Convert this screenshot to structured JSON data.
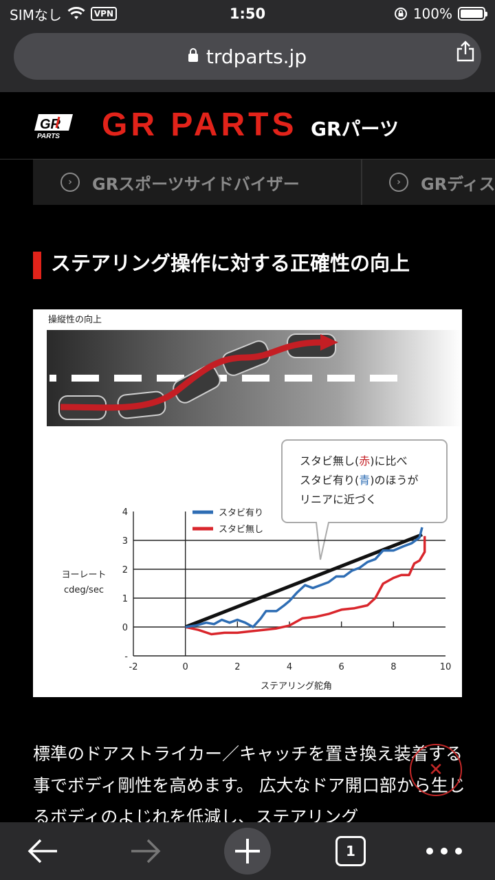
{
  "status": {
    "carrier": "SIMなし",
    "vpn": "VPN",
    "time": "1:50",
    "battery": "100%"
  },
  "browser": {
    "url": "trdparts.jp",
    "tab_count": "1"
  },
  "site": {
    "logo_text": "GR",
    "logo_sub": "PARTS",
    "title": "GR PARTS",
    "subtitle": "GRパーツ"
  },
  "tabs": [
    {
      "label": "GRスポーツサイドバイザー"
    },
    {
      "label": "GRディス"
    }
  ],
  "section": {
    "title": "ステアリング操作に対する正確性の向上"
  },
  "figure": {
    "top_caption": "操縦性の向上",
    "callout": [
      "スタビ無し(",
      "赤",
      ")に比べ",
      "スタビ有り(",
      "青",
      ")のほうが",
      "リニアに近づく"
    ],
    "colors": {
      "with": "#2e6db4",
      "without": "#d9262c",
      "reference": "#111111"
    }
  },
  "chart_data": {
    "type": "line",
    "xlabel": "ステアリング舵角",
    "ylabel": "ヨーレート",
    "ylabel_unit": "cdeg/sec",
    "xlim": [
      -2,
      10
    ],
    "ylim": [
      -1,
      4
    ],
    "x_ticks": [
      "-2",
      "0",
      "2",
      "4",
      "6",
      "8",
      "10"
    ],
    "y_ticks": [
      "-",
      "0",
      "1",
      "2",
      "3",
      "4"
    ],
    "legend": "top-left",
    "series": [
      {
        "name": "スタビ有り",
        "color": "#2e6db4",
        "x": [
          0,
          0.4,
          0.8,
          1.1,
          1.4,
          1.7,
          2.0,
          2.3,
          2.6,
          2.9,
          3.1,
          3.5,
          3.8,
          4.0,
          4.3,
          4.6,
          4.9,
          5.2,
          5.5,
          5.8,
          6.1,
          6.4,
          6.7,
          7.0,
          7.3,
          7.6,
          8.0,
          8.4,
          8.7,
          9.0,
          9.1
        ],
        "y": [
          0,
          0.05,
          0.15,
          0.1,
          0.25,
          0.15,
          0.25,
          0.15,
          0.0,
          0.3,
          0.55,
          0.55,
          0.75,
          0.9,
          1.2,
          1.45,
          1.35,
          1.45,
          1.55,
          1.75,
          1.75,
          1.95,
          2.05,
          2.25,
          2.35,
          2.65,
          2.65,
          2.8,
          2.9,
          3.1,
          3.45
        ]
      },
      {
        "name": "スタビ無し",
        "color": "#d9262c",
        "x": [
          0,
          0.5,
          1.0,
          1.5,
          2.0,
          2.5,
          3.0,
          3.5,
          4.0,
          4.5,
          5.0,
          5.5,
          6.0,
          6.5,
          7.0,
          7.3,
          7.6,
          8.0,
          8.3,
          8.6,
          8.8,
          9.0,
          9.2,
          9.2
        ],
        "y": [
          0,
          -0.1,
          -0.25,
          -0.2,
          -0.2,
          -0.15,
          -0.1,
          -0.05,
          0.05,
          0.3,
          0.35,
          0.45,
          0.6,
          0.65,
          0.75,
          1.0,
          1.5,
          1.7,
          1.8,
          1.8,
          2.2,
          2.3,
          2.6,
          3.15
        ]
      },
      {
        "name": "",
        "color": "#111111",
        "x": [
          0,
          9.1
        ],
        "y": [
          0,
          3.2
        ]
      }
    ]
  }
}
